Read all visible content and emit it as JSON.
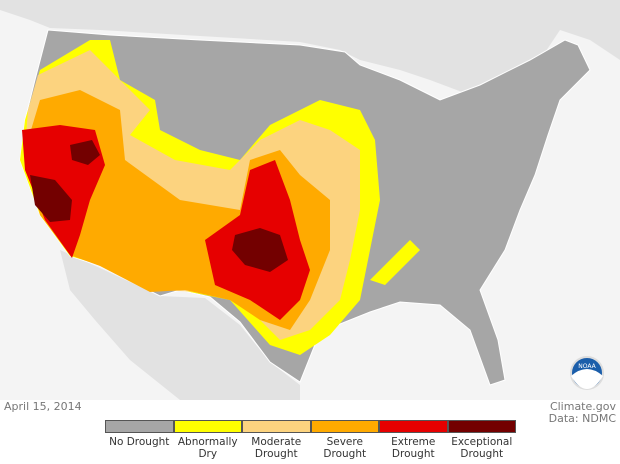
{
  "date": "April 15, 2014",
  "credit": "Climate.gov",
  "source": "Data: NDMC",
  "logo": "NOAA",
  "legend": [
    {
      "label": "No Drought",
      "color": "#a6a6a6"
    },
    {
      "label": "Abnormally Dry",
      "color": "#ffff00"
    },
    {
      "label": "Moderate Drought",
      "color": "#fcd37f"
    },
    {
      "label": "Severe Drought",
      "color": "#ffaa00"
    },
    {
      "label": "Extreme Drought",
      "color": "#e60000"
    },
    {
      "label": "Exceptional Drought",
      "color": "#730000"
    }
  ]
}
